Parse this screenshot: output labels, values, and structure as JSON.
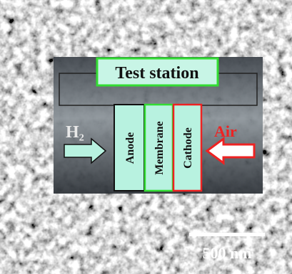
{
  "title": "Test station",
  "inlet_left": "H₂",
  "inlet_right": "Air",
  "layers": [
    "Anode",
    "Membrane",
    "Cathode"
  ],
  "scale_bar": "500 nm"
}
